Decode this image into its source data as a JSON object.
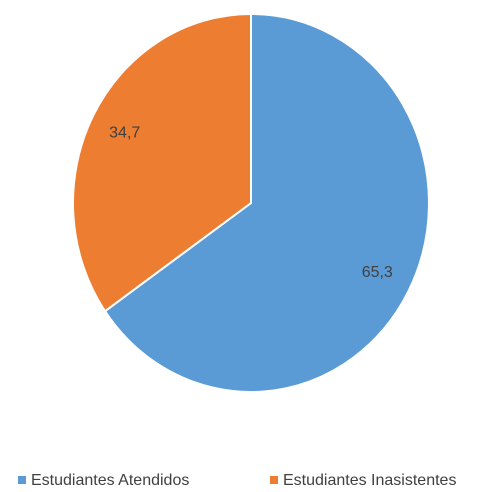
{
  "chart_data": {
    "type": "pie",
    "categories": [
      "Estudiantes Atendidos",
      "Estudiantes Inasistentes"
    ],
    "values": [
      65.3,
      34.7
    ],
    "value_labels": [
      "65,3",
      "34,7"
    ],
    "colors": [
      "#5b9bd5",
      "#ed7d31"
    ],
    "legend": "bottom"
  }
}
